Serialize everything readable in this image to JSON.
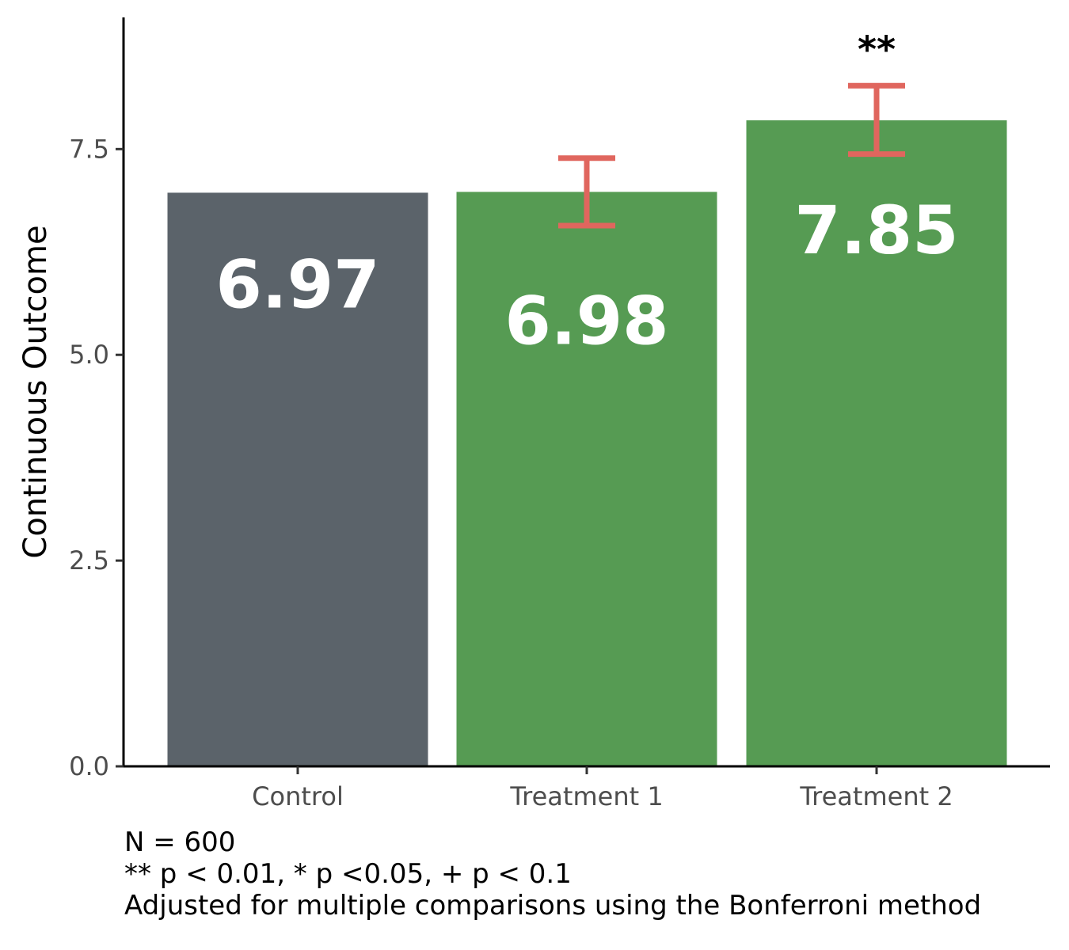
{
  "chart_data": {
    "type": "bar",
    "categories": [
      "Control",
      "Treatment 1",
      "Treatment 2"
    ],
    "values": [
      6.97,
      6.98,
      7.85
    ],
    "value_labels": [
      "6.97",
      "6.98",
      "7.85"
    ],
    "bar_colors": [
      "#5b636a",
      "#569b53",
      "#569b53"
    ],
    "error_bars": [
      null,
      {
        "low": 6.57,
        "high": 7.39
      },
      {
        "low": 7.44,
        "high": 8.27
      }
    ],
    "error_bar_color": "#e0665e",
    "significance": [
      "",
      "",
      "**"
    ],
    "title": "",
    "xlabel": "",
    "ylabel": "Continuous Outcome",
    "ylim": [
      0,
      9.1
    ],
    "yticks": [
      0,
      2.5,
      5,
      7.5
    ],
    "ytick_labels": [
      "0.0",
      "2.5",
      "5.0",
      "7.5"
    ],
    "grid": false,
    "legend": "none"
  },
  "footnotes": [
    "N = 600",
    "** p < 0.01, * p <0.05, + p < 0.1",
    "Adjusted for multiple comparisons using the Bonferroni method"
  ]
}
